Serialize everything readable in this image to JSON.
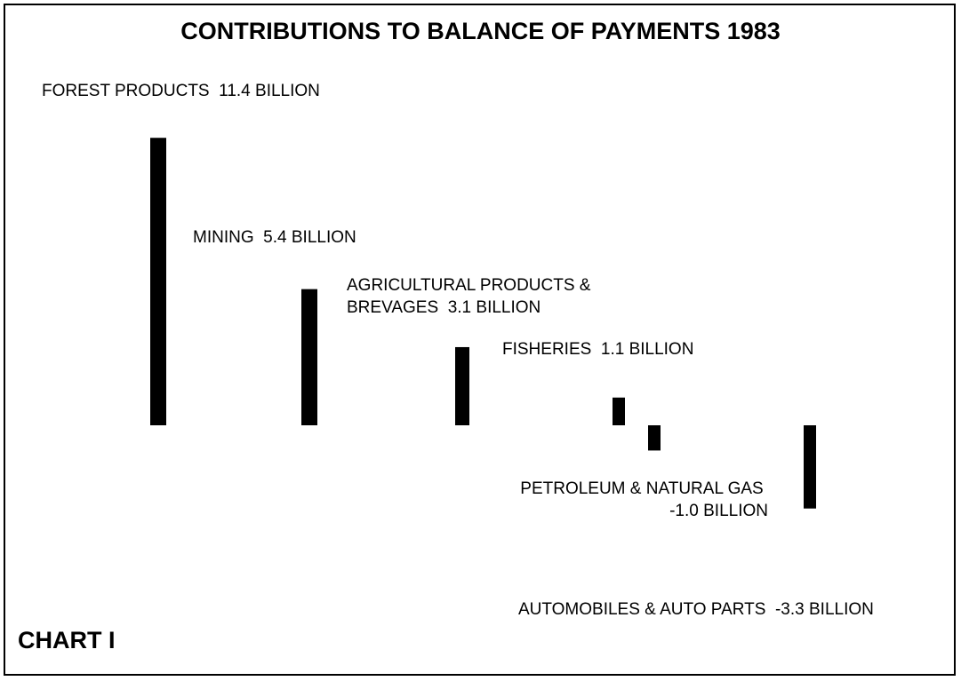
{
  "chart_data": {
    "type": "bar",
    "title": "CONTRIBUTIONS TO BALANCE OF PAYMENTS 1983",
    "label": "CHART I",
    "categories": [
      "FOREST PRODUCTS",
      "MINING",
      "AGRICULTURAL PRODUCTS & BREVAGES",
      "FISHERIES",
      "PETROLEUM & NATURAL GAS",
      "AUTOMOBILES & AUTO PARTS"
    ],
    "values": [
      11.4,
      5.4,
      3.1,
      1.1,
      -1.0,
      -3.3
    ],
    "value_labels": [
      "11.4 BILLION",
      "5.4 BILLION",
      "3.1 BILLION",
      "1.1 BILLION",
      "-1.0 BILLION",
      "-3.3  BILLION"
    ],
    "color": "#000000"
  }
}
